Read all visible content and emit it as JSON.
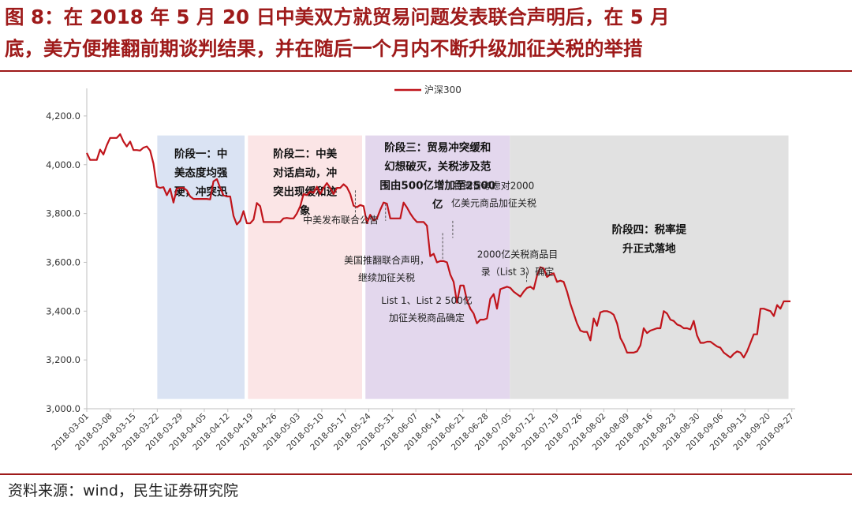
{
  "figure": {
    "title_line1": "图 8：在 2018 年 5 月 20 日中美双方就贸易问题发表联合声明后，在 5 月",
    "title_line2": "底，美方便推翻前期谈判结果，并在随后一个月内不断升级加征关税的举措",
    "source": "资料来源：wind，民生证券研究院"
  },
  "colors": {
    "title": "#9e1a1a",
    "line": "#c0141b",
    "phase1": "#dae3f3",
    "phase2": "#fbe5e6",
    "phase3": "#e3d7ed",
    "phase4": "#e1e1e1"
  },
  "chart_data": {
    "type": "line",
    "legend": [
      "沪深300"
    ],
    "legend_position": "top-center",
    "ylim": [
      3000,
      4300
    ],
    "yticks": [
      "3,000.0",
      "3,200.0",
      "3,400.0",
      "3,600.0",
      "3,800.0",
      "4,000.0",
      "4,200.0"
    ],
    "xtick_labels": [
      "2018-03-01",
      "2018-03-08",
      "2018-03-15",
      "2018-03-22",
      "2018-03-29",
      "2018-04-05",
      "2018-04-12",
      "2018-04-19",
      "2018-04-26",
      "2018-05-03",
      "2018-05-10",
      "2018-05-17",
      "2018-05-24",
      "2018-05-31",
      "2018-06-07",
      "2018-06-14",
      "2018-06-21",
      "2018-06-28",
      "2018-07-05",
      "2018-07-12",
      "2018-07-19",
      "2018-07-26",
      "2018-08-02",
      "2018-08-09",
      "2018-08-16",
      "2018-08-23",
      "2018-08-30",
      "2018-09-06",
      "2018-09-13",
      "2018-09-20",
      "2018-09-27"
    ],
    "series": [
      {
        "name": "沪深300",
        "values": [
          4048,
          4020,
          4020,
          4020,
          4062,
          4042,
          4080,
          4110,
          4110,
          4110,
          4125,
          4095,
          4075,
          4095,
          4060,
          4060,
          4058,
          4070,
          4075,
          4058,
          4005,
          3910,
          3905,
          3908,
          3875,
          3902,
          3845,
          3902,
          3905,
          3905,
          3895,
          3870,
          3860,
          3860,
          3860,
          3860,
          3860,
          3858,
          3932,
          3941,
          3905,
          3875,
          3870,
          3870,
          3790,
          3755,
          3770,
          3810,
          3760,
          3760,
          3775,
          3843,
          3830,
          3765,
          3765,
          3765,
          3765,
          3765,
          3765,
          3780,
          3782,
          3780,
          3780,
          3800,
          3830,
          3880,
          3875,
          3890,
          3885,
          3910,
          3880,
          3905,
          3925,
          3905,
          3880,
          3905,
          3905,
          3920,
          3908,
          3880,
          3832,
          3826,
          3835,
          3830,
          3760,
          3795,
          3772,
          3780,
          3815,
          3845,
          3840,
          3780,
          3780,
          3780,
          3780,
          3845,
          3825,
          3800,
          3780,
          3765,
          3765,
          3765,
          3750,
          3625,
          3635,
          3600,
          3605,
          3605,
          3600,
          3550,
          3520,
          3435,
          3505,
          3505,
          3445,
          3410,
          3390,
          3350,
          3365,
          3365,
          3370,
          3450,
          3470,
          3410,
          3490,
          3495,
          3500,
          3495,
          3480,
          3470,
          3460,
          3480,
          3495,
          3500,
          3490,
          3545,
          3580,
          3575,
          3540,
          3550,
          3555,
          3520,
          3525,
          3520,
          3480,
          3430,
          3390,
          3350,
          3320,
          3315,
          3315,
          3280,
          3370,
          3340,
          3395,
          3400,
          3400,
          3395,
          3385,
          3350,
          3290,
          3265,
          3230,
          3230,
          3230,
          3235,
          3260,
          3330,
          3310,
          3320,
          3325,
          3330,
          3330,
          3400,
          3390,
          3365,
          3360,
          3345,
          3340,
          3330,
          3330,
          3325,
          3360,
          3300,
          3270,
          3270,
          3275,
          3275,
          3265,
          3255,
          3250,
          3230,
          3220,
          3210,
          3225,
          3235,
          3230,
          3210,
          3235,
          3270,
          3305,
          3305,
          3410,
          3410,
          3405,
          3400,
          3380,
          3425,
          3410,
          3440,
          3440,
          3440
        ]
      }
    ],
    "phases": [
      {
        "from": "2018-03-22",
        "to": "2018-04-17",
        "label_lines": [
          "阶段一：中",
          "美态度均强",
          "硬，冲突迅"
        ]
      },
      {
        "from": "2018-04-18",
        "to": "2018-05-22",
        "label_lines": [
          "阶段二：中美",
          "对话启动，冲",
          "突出现缓和迹",
          "象"
        ]
      },
      {
        "from": "2018-05-23",
        "to": "2018-07-05",
        "label_lines": [
          "阶段三：贸易冲突缓和",
          "幻想破灭，关税涉及范",
          "围由500亿增加至2500",
          "亿"
        ]
      },
      {
        "from": "2018-07-05",
        "to": "2018-09-26",
        "label_lines": [
          "阶段四：税率提",
          "升正式落地"
        ]
      }
    ],
    "annotations": [
      {
        "date": "2018-05-20",
        "lines": [
          "中美发布联合公告"
        ]
      },
      {
        "date": "2018-05-29",
        "lines": [
          "美国推翻联合声明，",
          "继续加征关税"
        ]
      },
      {
        "date": "2018-06-15",
        "lines": [
          "List 1、List 2 500亿",
          "加征关税商品确定"
        ]
      },
      {
        "date": "2018-06-18",
        "lines": [
          "特朗普考虑对2000",
          "亿美元商品加征关税"
        ]
      },
      {
        "date": "2018-07-10",
        "lines": [
          "2000亿关税商品目",
          "录（List 3）确定"
        ]
      }
    ]
  }
}
